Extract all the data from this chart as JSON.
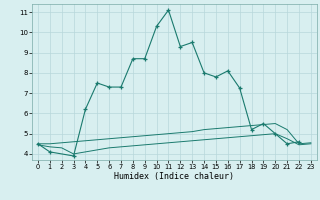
{
  "xlabel": "Humidex (Indice chaleur)",
  "x": [
    0,
    1,
    2,
    3,
    4,
    5,
    6,
    7,
    8,
    9,
    10,
    11,
    12,
    13,
    14,
    15,
    16,
    17,
    18,
    19,
    20,
    21,
    22,
    23
  ],
  "line1_y": [
    4.5,
    4.1,
    null,
    3.9,
    6.2,
    7.5,
    7.3,
    7.3,
    8.7,
    8.7,
    10.3,
    11.1,
    9.3,
    9.5,
    8.0,
    7.8,
    8.1,
    7.25,
    5.2,
    5.5,
    5.0,
    4.5,
    4.6,
    null
  ],
  "line2_y": [
    4.5,
    4.5,
    4.55,
    4.6,
    4.65,
    4.7,
    4.75,
    4.8,
    4.85,
    4.9,
    4.95,
    5.0,
    5.05,
    5.1,
    5.2,
    5.25,
    5.3,
    5.35,
    5.4,
    5.45,
    5.5,
    5.2,
    4.5,
    4.55
  ],
  "line3_y": [
    4.45,
    4.35,
    4.3,
    4.0,
    4.1,
    4.2,
    4.3,
    4.35,
    4.4,
    4.45,
    4.5,
    4.55,
    4.6,
    4.65,
    4.7,
    4.75,
    4.8,
    4.85,
    4.9,
    4.95,
    5.0,
    4.75,
    4.45,
    4.5
  ],
  "line_color": "#1a7a6e",
  "bg_color": "#d8eff0",
  "grid_color": "#b8d8db",
  "ylim": [
    3.7,
    11.4
  ],
  "xlim": [
    -0.5,
    23.5
  ],
  "yticks": [
    4,
    5,
    6,
    7,
    8,
    9,
    10,
    11
  ],
  "xticks": [
    0,
    1,
    2,
    3,
    4,
    5,
    6,
    7,
    8,
    9,
    10,
    11,
    12,
    13,
    14,
    15,
    16,
    17,
    18,
    19,
    20,
    21,
    22,
    23
  ]
}
